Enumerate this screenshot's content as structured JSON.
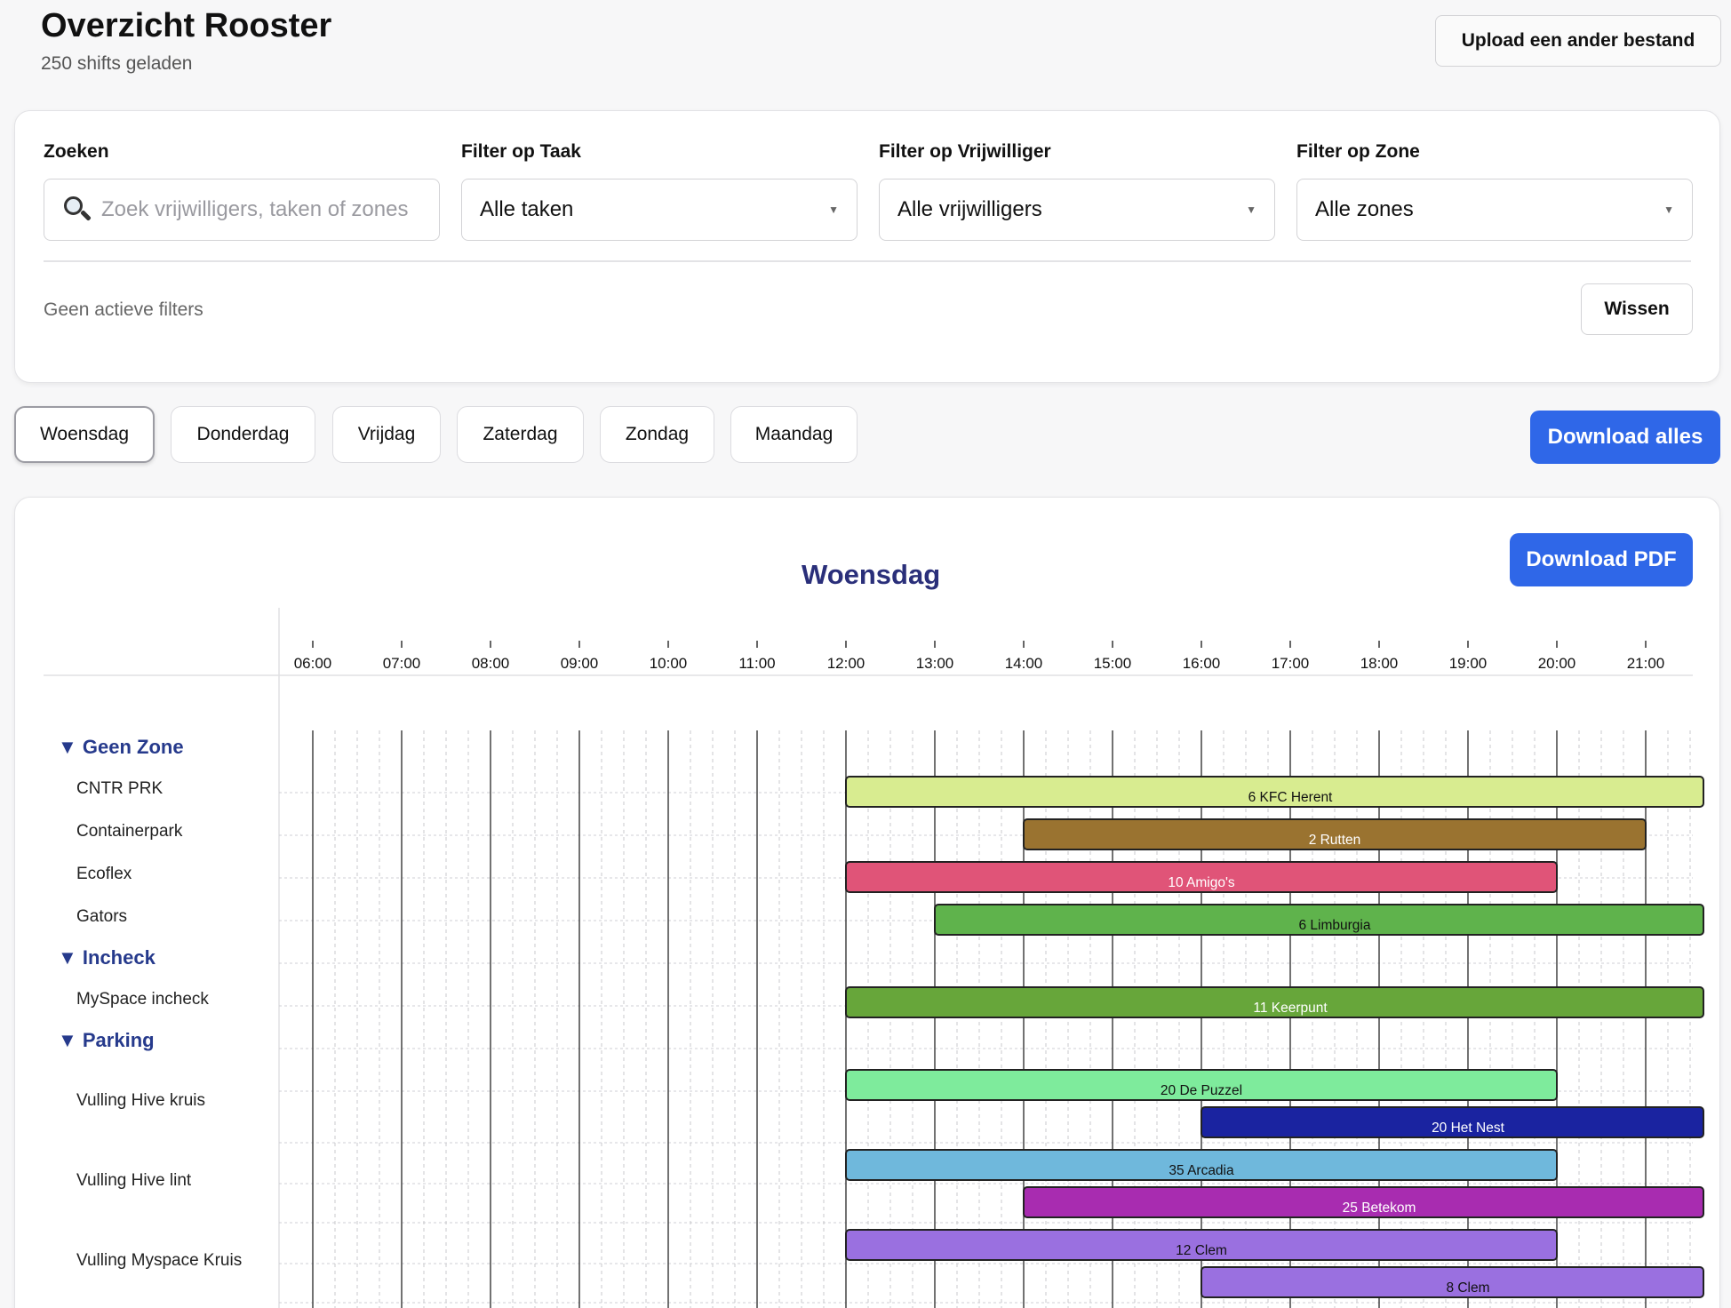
{
  "header": {
    "title": "Overzicht Rooster",
    "subtitle": "250 shifts geladen",
    "upload_label": "Upload een ander bestand"
  },
  "filters": {
    "search_label": "Zoeken",
    "search_placeholder": "Zoek vrijwilligers, taken of zones",
    "task_label": "Filter op Taak",
    "task_value": "Alle taken",
    "volunteer_label": "Filter op Vrijwilliger",
    "volunteer_value": "Alle vrijwilligers",
    "zone_label": "Filter op Zone",
    "zone_value": "Alle zones",
    "active_text": "Geen actieve filters",
    "clear_label": "Wissen"
  },
  "tabs": [
    {
      "label": "Woensdag",
      "active": true
    },
    {
      "label": "Donderdag",
      "active": false
    },
    {
      "label": "Vrijdag",
      "active": false
    },
    {
      "label": "Zaterdag",
      "active": false
    },
    {
      "label": "Zondag",
      "active": false
    },
    {
      "label": "Maandag",
      "active": false
    }
  ],
  "download_all_label": "Download alles",
  "schedule": {
    "day_title": "Woensdag",
    "download_pdf_label": "Download PDF",
    "hours": [
      "06:00",
      "07:00",
      "08:00",
      "09:00",
      "10:00",
      "11:00",
      "12:00",
      "13:00",
      "14:00",
      "15:00",
      "16:00",
      "17:00",
      "18:00",
      "19:00",
      "20:00",
      "21:00"
    ],
    "zones": [
      {
        "name": "▼ Geen Zone",
        "rows": [
          "CNTR PRK",
          "Containerpark",
          "Ecoflex",
          "Gators"
        ]
      },
      {
        "name": "▼ Incheck",
        "rows": [
          "MySpace incheck"
        ]
      },
      {
        "name": "▼ Parking",
        "rows": [
          "Vulling Hive kruis",
          "Vulling Hive lint",
          "Vulling Myspace Kruis"
        ]
      }
    ],
    "shifts": [
      {
        "row": "CNTR PRK",
        "label": "6 KFC Herent",
        "start": 12,
        "end": 22,
        "color": "#d8ec90",
        "text_color": "#111111"
      },
      {
        "row": "Containerpark",
        "label": "2 Rutten",
        "start": 14,
        "end": 21,
        "color": "#9a7330",
        "text_color": "#ffffff"
      },
      {
        "row": "Ecoflex",
        "label": "10 Amigo's",
        "start": 12,
        "end": 20,
        "color": "#e05478",
        "text_color": "#ffffff"
      },
      {
        "row": "Gators",
        "label": "6 Limburgia",
        "start": 13,
        "end": 22,
        "color": "#5fb34c",
        "text_color": "#111111"
      },
      {
        "row": "MySpace incheck",
        "label": "11 Keerpunt",
        "start": 12,
        "end": 22,
        "color": "#67a63a",
        "text_color": "#ffffff"
      },
      {
        "row": "Vulling Hive kruis",
        "label": "20 De Puzzel",
        "start": 12,
        "end": 20,
        "color": "#7eeb9c",
        "text_color": "#111111"
      },
      {
        "row": "Vulling Hive kruis",
        "label": "20 Het Nest",
        "start": 16,
        "end": 22,
        "color": "#1a23a0",
        "text_color": "#ffffff"
      },
      {
        "row": "Vulling Hive lint",
        "label": "35 Arcadia",
        "start": 12,
        "end": 20,
        "color": "#6fb8dc",
        "text_color": "#111111"
      },
      {
        "row": "Vulling Hive lint",
        "label": "25 Betekom",
        "start": 14,
        "end": 22,
        "color": "#a82cb0",
        "text_color": "#ffffff"
      },
      {
        "row": "Vulling Myspace Kruis",
        "label": "12 Clem",
        "start": 12,
        "end": 20,
        "color": "#9a70e0",
        "text_color": "#111111"
      },
      {
        "row": "Vulling Myspace Kruis",
        "label": "8 Clem",
        "start": 16,
        "end": 22,
        "color": "#9a70e0",
        "text_color": "#111111"
      }
    ]
  }
}
